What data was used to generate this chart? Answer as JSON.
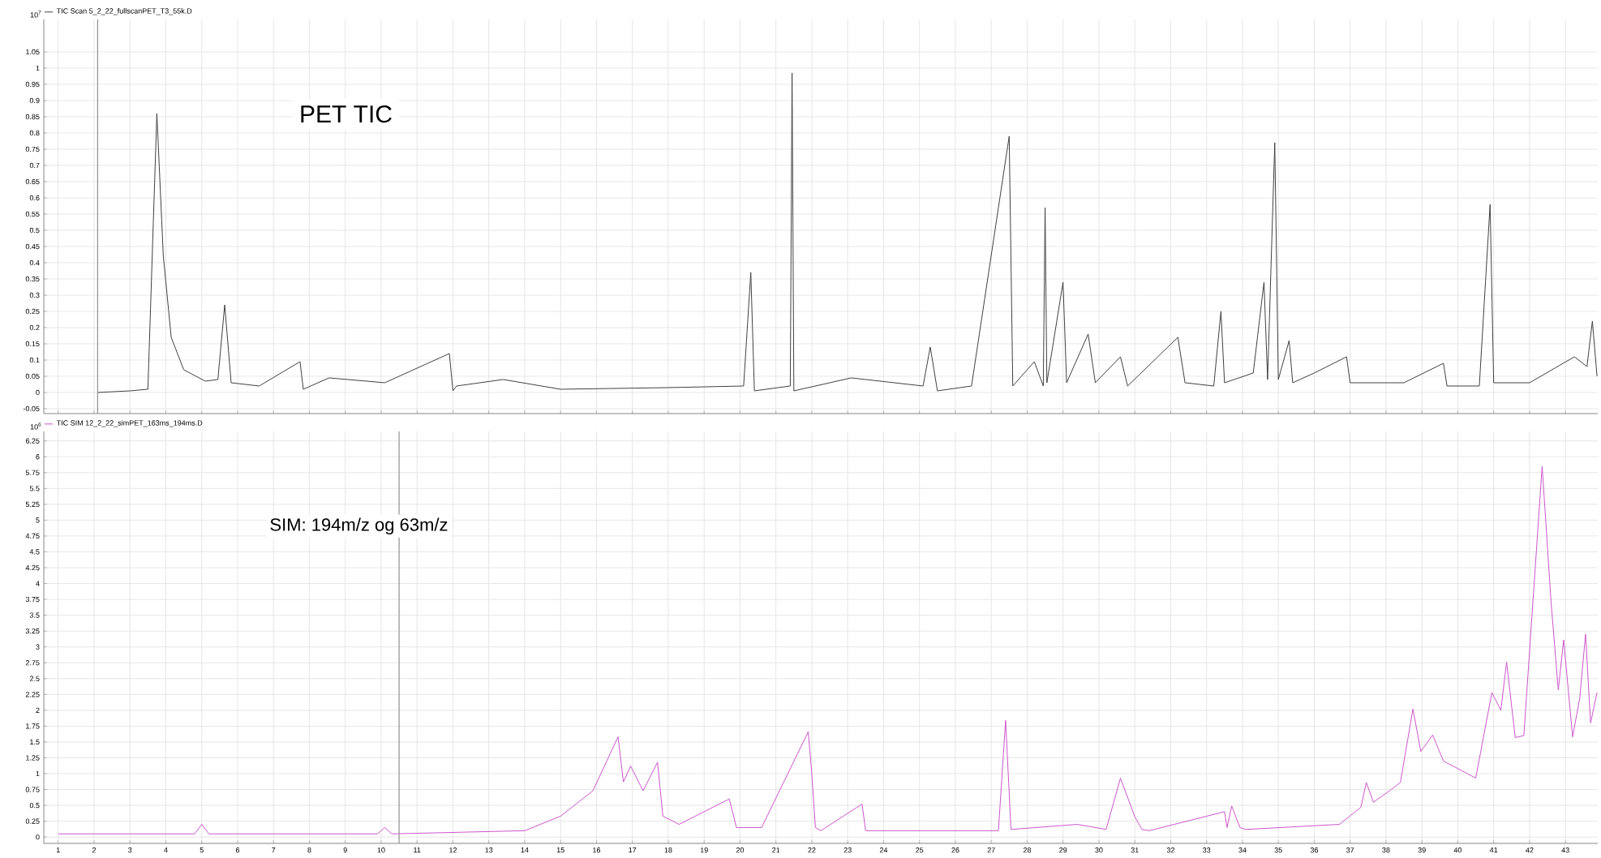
{
  "chart_data": [
    {
      "type": "line",
      "xlim": [
        0.6,
        43.9
      ],
      "ylim": [
        -0.065,
        1.15
      ],
      "xticks": [
        1,
        2,
        3,
        4,
        5,
        6,
        7,
        8,
        9,
        10,
        11,
        12,
        13,
        14,
        15,
        16,
        17,
        18,
        19,
        20,
        21,
        22,
        23,
        24,
        25,
        26,
        27,
        28,
        29,
        30,
        31,
        32,
        33,
        34,
        35,
        36,
        37,
        38,
        39,
        40,
        41,
        42,
        43
      ],
      "yticks": [
        -0.05,
        0,
        0.05,
        0.1,
        0.15,
        0.2,
        0.25,
        0.3,
        0.35,
        0.4,
        0.45,
        0.5,
        0.55,
        0.6,
        0.65,
        0.7,
        0.75,
        0.8,
        0.85,
        0.9,
        0.95,
        1,
        1.05
      ],
      "tick_labels": "y",
      "grid": true,
      "legend": "top left",
      "annotations": [
        "10$^{7}$",
        "PET TIC"
      ],
      "ref_lines": [
        {
          "axis": "x",
          "value": 2.1,
          "color": "#909090"
        }
      ],
      "series": [
        {
          "name": "TIC Scan 5_2_22_fullscanPET_T3_55k.D",
          "color": "#404040",
          "x": [
            2.1,
            3.0,
            3.5,
            3.75,
            3.93,
            4.15,
            4.5,
            5.1,
            5.45,
            5.64,
            5.82,
            6.6,
            7.74,
            7.83,
            8.55,
            10.1,
            11.9,
            12.0,
            12.1,
            13.4,
            15.0,
            18.0,
            20.1,
            20.3,
            20.4,
            21.4,
            21.45,
            21.5,
            23.1,
            25.1,
            25.3,
            25.5,
            26.45,
            27.5,
            27.6,
            28.2,
            28.45,
            28.5,
            28.55,
            29.0,
            29.1,
            29.7,
            29.9,
            30.6,
            30.8,
            32.2,
            32.4,
            33.2,
            33.4,
            33.5,
            34.3,
            34.6,
            34.7,
            34.9,
            35.0,
            35.3,
            35.4,
            36.0,
            36.9,
            37.0,
            38.5,
            39.6,
            39.7,
            40.6,
            40.9,
            41.0,
            42.0,
            43.25,
            43.6,
            43.75,
            43.88
          ],
          "values": [
            0,
            0.005,
            0.01,
            0.86,
            0.42,
            0.17,
            0.07,
            0.035,
            0.04,
            0.27,
            0.03,
            0.02,
            0.095,
            0.01,
            0.045,
            0.03,
            0.12,
            0.005,
            0.02,
            0.04,
            0.01,
            0.015,
            0.02,
            0.37,
            0.005,
            0.02,
            0.985,
            0.005,
            0.045,
            0.02,
            0.14,
            0.005,
            0.02,
            0.79,
            0.02,
            0.095,
            0.02,
            0.57,
            0.03,
            0.34,
            0.03,
            0.18,
            0.03,
            0.11,
            0.02,
            0.17,
            0.03,
            0.02,
            0.25,
            0.03,
            0.06,
            0.34,
            0.04,
            0.77,
            0.04,
            0.16,
            0.03,
            0.06,
            0.11,
            0.03,
            0.03,
            0.09,
            0.02,
            0.02,
            0.58,
            0.03,
            0.03,
            0.11,
            0.08,
            0.22,
            0.05
          ]
        }
      ]
    },
    {
      "type": "line",
      "xlim": [
        0.6,
        43.9
      ],
      "ylim": [
        -0.1,
        6.4
      ],
      "xticks": [
        1,
        2,
        3,
        4,
        5,
        6,
        7,
        8,
        9,
        10,
        11,
        12,
        13,
        14,
        15,
        16,
        17,
        18,
        19,
        20,
        21,
        22,
        23,
        24,
        25,
        26,
        27,
        28,
        29,
        30,
        31,
        32,
        33,
        34,
        35,
        36,
        37,
        38,
        39,
        40,
        41,
        42,
        43
      ],
      "yticks": [
        0,
        0.25,
        0.5,
        0.75,
        1,
        1.25,
        1.5,
        1.75,
        2,
        2.25,
        2.5,
        2.75,
        3,
        3.25,
        3.5,
        3.75,
        4,
        4.25,
        4.5,
        4.75,
        5,
        5.25,
        5.5,
        5.75,
        6,
        6.25
      ],
      "grid": true,
      "legend": "top left",
      "annotations": [
        "10$^{6}$",
        "SIM: 194m/z og 63m/z"
      ],
      "ref_lines": [
        {
          "axis": "x",
          "value": 10.5,
          "color": "#909090"
        }
      ],
      "series": [
        {
          "name": "TIC SIM 12_2_22_simPET_163ms_194ms.D",
          "color": "#cc55cc",
          "x": [
            1,
            4.8,
            5.0,
            5.2,
            9.9,
            10.1,
            10.3,
            14.0,
            15.0,
            15.9,
            16.6,
            16.75,
            16.95,
            17.3,
            17.7,
            17.85,
            18.3,
            19.7,
            19.9,
            20.6,
            21.9,
            22.0,
            22.1,
            22.25,
            23.4,
            23.5,
            23.6,
            27.2,
            27.4,
            27.55,
            29.4,
            30.2,
            30.6,
            31.0,
            31.2,
            31.4,
            33.5,
            33.57,
            33.7,
            33.93,
            34.1,
            36.7,
            37.3,
            37.45,
            37.65,
            38.1,
            38.4,
            38.75,
            38.97,
            39.3,
            39.6,
            40.5,
            40.95,
            41.2,
            41.36,
            41.6,
            41.84,
            42.35,
            42.6,
            42.8,
            42.95,
            43.2,
            43.4,
            43.56,
            43.7,
            43.88
          ],
          "values": [
            0.05,
            0.05,
            0.2,
            0.05,
            0.05,
            0.15,
            0.05,
            0.1,
            0.33,
            0.73,
            1.58,
            0.87,
            1.12,
            0.73,
            1.18,
            0.33,
            0.2,
            0.6,
            0.15,
            0.15,
            1.66,
            1.0,
            0.15,
            0.1,
            0.52,
            0.1,
            0.1,
            0.1,
            1.84,
            0.12,
            0.2,
            0.12,
            0.93,
            0.32,
            0.12,
            0.1,
            0.4,
            0.15,
            0.49,
            0.15,
            0.12,
            0.2,
            0.47,
            0.86,
            0.55,
            0.73,
            0.86,
            2.02,
            1.35,
            1.61,
            1.2,
            0.93,
            2.28,
            2.0,
            2.76,
            1.57,
            1.6,
            5.85,
            3.7,
            2.32,
            3.11,
            1.58,
            2.2,
            3.2,
            1.8,
            2.28
          ]
        }
      ]
    }
  ]
}
